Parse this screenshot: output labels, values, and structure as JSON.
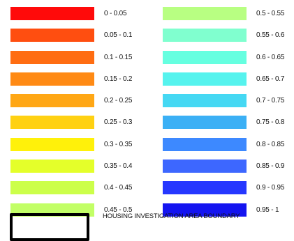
{
  "legend": {
    "left_items": [
      {
        "label": "0 - 0.05",
        "color": "#ff0a0a"
      },
      {
        "label": "0.05 - 0.1",
        "color": "#ff4e10"
      },
      {
        "label": "0.1 - 0.15",
        "color": "#ff6d12"
      },
      {
        "label": "0.15 - 0.2",
        "color": "#ff8a14"
      },
      {
        "label": "0.2 - 0.25",
        "color": "#ffa715"
      },
      {
        "label": "0.25 - 0.3",
        "color": "#ffd112"
      },
      {
        "label": "0.3 - 0.35",
        "color": "#fff10a"
      },
      {
        "label": "0.35 - 0.4",
        "color": "#e4ff2a"
      },
      {
        "label": "0.4 - 0.45",
        "color": "#ccff4a"
      },
      {
        "label": "0.45 - 0.5",
        "color": "#c2ff66"
      }
    ],
    "right_items": [
      {
        "label": "0.5 - 0.55",
        "color": "#b8ff82"
      },
      {
        "label": "0.55 - 0.6",
        "color": "#80ffcf"
      },
      {
        "label": "0.6 - 0.65",
        "color": "#66ffe0"
      },
      {
        "label": "0.65 - 0.7",
        "color": "#56f3ee"
      },
      {
        "label": "0.7 - 0.75",
        "color": "#45d8f3"
      },
      {
        "label": "0.75 - 0.8",
        "color": "#3bb0f5"
      },
      {
        "label": "0.8 - 0.85",
        "color": "#3d89ff"
      },
      {
        "label": "0.85 - 0.9",
        "color": "#3d67ff"
      },
      {
        "label": "0.9 - 0.95",
        "color": "#2637ff"
      },
      {
        "label": "0.95 - 1",
        "color": "#1414f0"
      }
    ],
    "boundary_label": "HOUSING INVESTIGATION AREA BOUNDARY"
  }
}
